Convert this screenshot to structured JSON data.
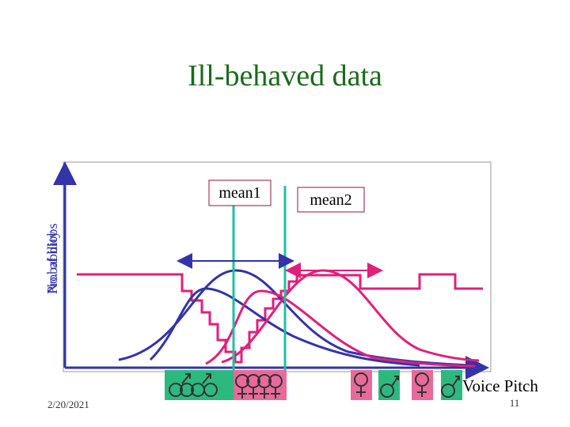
{
  "title": "Ill-behaved data",
  "y_labels": [
    "Probability",
    "No. of blobs"
  ],
  "mean1": "mean1",
  "mean2": "mean2",
  "x_label": "Voice Pitch",
  "footer": {
    "date": "2/20/2021",
    "page": "11"
  }
}
